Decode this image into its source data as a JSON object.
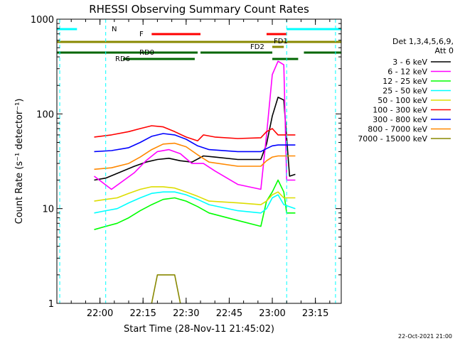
{
  "chart_data": {
    "type": "line",
    "title": "RHESSI Observing Summary Count Rates",
    "xlabel": "Start Time (28-Nov-11 21:45:02)",
    "ylabel": "Count Rate (s⁻¹ detector⁻¹)",
    "footer": "22-Oct-2021 21:00",
    "yscale": "log",
    "ylim": [
      1,
      1000
    ],
    "xlim": [
      "21:45",
      "23:24"
    ],
    "y_ticks": [
      "1",
      "10",
      "100",
      "1000"
    ],
    "x_ticks": [
      "22:00",
      "22:15",
      "22:30",
      "22:45",
      "23:00",
      "23:15"
    ],
    "legend_header": [
      "Det 1,3,4,5,6,9,",
      "Att 0"
    ],
    "legend_position": "right",
    "series": [
      {
        "name": "3 - 6 keV",
        "color": "#000000",
        "x": [
          "21:58",
          "22:02",
          "22:12",
          "22:16",
          "22:20",
          "22:24",
          "22:28",
          "22:32",
          "22:36",
          "22:40",
          "22:48",
          "22:56",
          "22:58",
          "23:00",
          "23:02",
          "23:04",
          "23:06",
          "23:08"
        ],
        "values": [
          20,
          21,
          28,
          31,
          33,
          34,
          32,
          31,
          36,
          35,
          33,
          33,
          48,
          95,
          150,
          140,
          22,
          23
        ]
      },
      {
        "name": "6 - 12 keV",
        "color": "#ff00ff",
        "x": [
          "21:58",
          "22:04",
          "22:12",
          "22:16",
          "22:20",
          "22:24",
          "22:28",
          "22:32",
          "22:36",
          "22:40",
          "22:48",
          "22:56",
          "22:58",
          "23:00",
          "23:02",
          "23:04",
          "23:05",
          "23:08"
        ],
        "values": [
          22,
          16,
          24,
          32,
          40,
          42,
          38,
          30,
          30,
          25,
          18,
          16,
          60,
          260,
          360,
          330,
          20,
          20
        ]
      },
      {
        "name": "12 - 25 keV",
        "color": "#00ff00",
        "x": [
          "21:58",
          "22:02",
          "22:06",
          "22:10",
          "22:14",
          "22:18",
          "22:22",
          "22:26",
          "22:30",
          "22:34",
          "22:38",
          "22:48",
          "22:56",
          "22:58",
          "23:00",
          "23:02",
          "23:04",
          "23:05",
          "23:08"
        ],
        "values": [
          6,
          6.5,
          7,
          8,
          9.5,
          11,
          12.5,
          13,
          12,
          10.5,
          9,
          7.5,
          6.5,
          12,
          15,
          20,
          15,
          9,
          9
        ]
      },
      {
        "name": "25 - 50 keV",
        "color": "#00ffff",
        "x": [
          "21:58",
          "22:02",
          "22:06",
          "22:10",
          "22:14",
          "22:18",
          "22:22",
          "22:26",
          "22:30",
          "22:34",
          "22:38",
          "22:48",
          "22:56",
          "22:58",
          "23:00",
          "23:02",
          "23:04",
          "23:08"
        ],
        "values": [
          9,
          9.5,
          10,
          11.5,
          13,
          14.5,
          15,
          15,
          14,
          12.5,
          11,
          9.5,
          9,
          10,
          13,
          14,
          11,
          10
        ]
      },
      {
        "name": "50 - 100 keV",
        "color": "#dddd00",
        "x": [
          "21:58",
          "22:02",
          "22:06",
          "22:10",
          "22:14",
          "22:18",
          "22:22",
          "22:26",
          "22:30",
          "22:34",
          "22:38",
          "22:48",
          "22:56",
          "22:58",
          "23:00",
          "23:02",
          "23:04",
          "23:08"
        ],
        "values": [
          12,
          12.5,
          13,
          14.5,
          16,
          17,
          17,
          16.5,
          15,
          13.5,
          12,
          11.5,
          11,
          12,
          14,
          15,
          13,
          13
        ]
      },
      {
        "name": "100 - 300 keV",
        "color": "#ff0000",
        "x": [
          "21:58",
          "22:04",
          "22:10",
          "22:14",
          "22:18",
          "22:22",
          "22:26",
          "22:30",
          "22:34",
          "22:36",
          "22:40",
          "22:48",
          "22:56",
          "22:58",
          "23:00",
          "23:02",
          "23:08"
        ],
        "values": [
          57,
          60,
          65,
          70,
          75,
          73,
          65,
          57,
          52,
          60,
          57,
          55,
          56,
          65,
          70,
          60,
          60
        ]
      },
      {
        "name": "300 - 800 keV",
        "color": "#0000ff",
        "x": [
          "21:58",
          "22:04",
          "22:10",
          "22:14",
          "22:18",
          "22:22",
          "22:26",
          "22:30",
          "22:34",
          "22:38",
          "22:48",
          "22:56",
          "22:58",
          "23:00",
          "23:02",
          "23:08"
        ],
        "values": [
          40,
          41,
          44,
          50,
          58,
          62,
          60,
          54,
          46,
          42,
          40,
          40,
          43,
          46,
          47,
          47
        ]
      },
      {
        "name": "800 - 7000 keV",
        "color": "#ff8800",
        "x": [
          "21:58",
          "22:04",
          "22:10",
          "22:14",
          "22:18",
          "22:22",
          "22:26",
          "22:30",
          "22:34",
          "22:38",
          "22:48",
          "22:56",
          "22:58",
          "23:00",
          "23:02",
          "23:08"
        ],
        "values": [
          26,
          27,
          30,
          35,
          42,
          48,
          49,
          45,
          37,
          31,
          28,
          28,
          32,
          35,
          36,
          36
        ]
      },
      {
        "name": "7000 - 15000 keV",
        "color": "#888800",
        "x": [
          "22:18",
          "22:20",
          "22:22",
          "22:24",
          "22:26",
          "22:28"
        ],
        "values": [
          1,
          2,
          2,
          2,
          2,
          1
        ]
      }
    ],
    "flag_labels": [
      "N",
      "F",
      "FD1",
      "FD2",
      "RD0",
      "RD6"
    ]
  }
}
